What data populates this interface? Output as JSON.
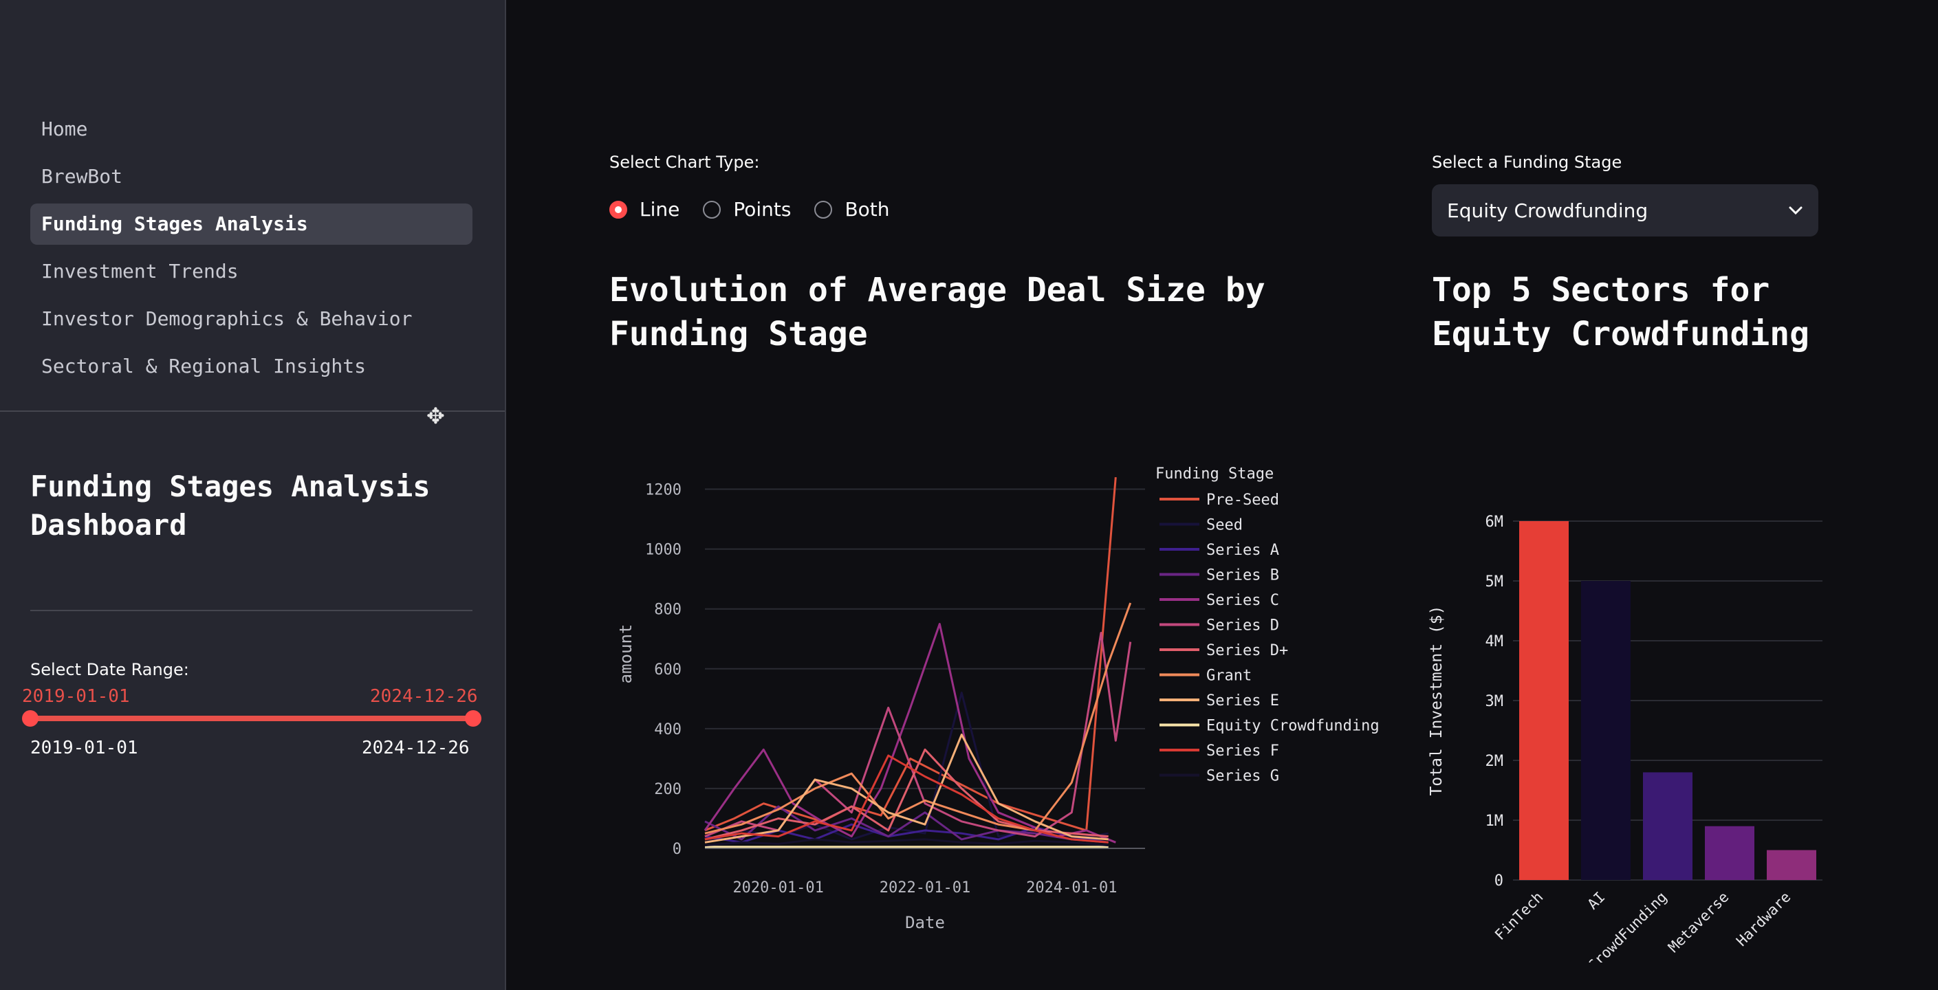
{
  "sidebar": {
    "nav": [
      {
        "label": "Home"
      },
      {
        "label": "BrewBot"
      },
      {
        "label": "Funding Stages Analysis"
      },
      {
        "label": "Investment Trends"
      },
      {
        "label": "Investor Demographics & Behavior"
      },
      {
        "label": "Sectoral & Regional Insights"
      }
    ],
    "title": "Funding Stages Analysis Dashboard",
    "date_range": {
      "label": "Select Date Range:",
      "start": "2019-01-01",
      "end": "2024-12-26"
    }
  },
  "controls": {
    "chart_type_label": "Select Chart Type:",
    "chart_types": [
      "Line",
      "Points",
      "Both"
    ],
    "selected_chart_type": "Line",
    "stage_label": "Select a Funding Stage",
    "stage_value": "Equity Crowdfunding"
  },
  "headings": {
    "left": "Evolution of Average Deal Size by Funding Stage",
    "right": "Top 5 Sectors for Equity Crowdfunding"
  },
  "colors": {
    "accent": "#ff4b4b",
    "bg": "#0e0e12",
    "sidebar": "#262730"
  },
  "icons": {
    "cursor": "move-cursor-icon",
    "dropdown": "chevron-down-icon"
  },
  "chart_data": [
    {
      "type": "line",
      "title": "Evolution of Average Deal Size by Funding Stage",
      "xlabel": "Date",
      "ylabel": "amount",
      "xlim": [
        2019.0,
        2025.0
      ],
      "ylim": [
        0,
        1300
      ],
      "x_ticks": [
        "2020-01-01",
        "2022-01-01",
        "2024-01-01"
      ],
      "y_ticks": [
        0,
        200,
        400,
        600,
        800,
        1000,
        1200
      ],
      "legend_title": "Funding Stage",
      "series": [
        {
          "name": "Pre-Seed",
          "color": "#e0533d",
          "x": [
            2019.0,
            2019.4,
            2019.8,
            2020.2,
            2020.6,
            2021.0,
            2021.4,
            2021.8,
            2022.2,
            2022.6,
            2023.0,
            2023.4,
            2023.8,
            2024.2,
            2024.6
          ],
          "y": [
            60,
            100,
            150,
            120,
            90,
            140,
            110,
            300,
            250,
            200,
            150,
            120,
            90,
            60,
            1240
          ]
        },
        {
          "name": "Seed",
          "color": "#17123a",
          "x": [
            2019.0,
            2019.5,
            2020.0,
            2020.5,
            2021.0,
            2021.5,
            2022.0,
            2022.5,
            2023.0,
            2023.5,
            2024.0,
            2024.5
          ],
          "y": [
            20,
            60,
            40,
            80,
            30,
            70,
            50,
            520,
            40,
            60,
            30,
            50
          ]
        },
        {
          "name": "Series A",
          "color": "#3e1f8e",
          "x": [
            2019.0,
            2019.5,
            2020.0,
            2020.5,
            2021.0,
            2021.5,
            2022.0,
            2022.5,
            2023.0,
            2023.5,
            2024.0,
            2024.5
          ],
          "y": [
            40,
            20,
            60,
            30,
            80,
            40,
            60,
            50,
            30,
            70,
            40,
            20
          ]
        },
        {
          "name": "Series B",
          "color": "#6a2585",
          "x": [
            2019.0,
            2019.5,
            2020.0,
            2020.5,
            2021.0,
            2021.5,
            2022.0,
            2022.5,
            2023.0,
            2023.5,
            2024.0,
            2024.5
          ],
          "y": [
            90,
            30,
            140,
            60,
            100,
            40,
            120,
            30,
            60,
            50,
            30,
            20
          ]
        },
        {
          "name": "Series C",
          "color": "#9a2f86",
          "x": [
            2019.0,
            2019.4,
            2019.8,
            2020.2,
            2020.6,
            2021.0,
            2021.4,
            2021.8,
            2022.2,
            2022.6,
            2023.0,
            2023.4,
            2023.8,
            2024.2,
            2024.6
          ],
          "y": [
            60,
            200,
            330,
            150,
            90,
            40,
            200,
            470,
            750,
            300,
            120,
            80,
            40,
            60,
            20
          ]
        },
        {
          "name": "Series D",
          "color": "#c2487d",
          "x": [
            2019.0,
            2019.5,
            2020.0,
            2020.5,
            2021.0,
            2021.5,
            2022.0,
            2022.5,
            2023.0,
            2023.5,
            2024.0,
            2024.4,
            2024.6,
            2024.8
          ],
          "y": [
            40,
            90,
            60,
            230,
            120,
            470,
            150,
            90,
            60,
            40,
            120,
            720,
            360,
            690
          ]
        },
        {
          "name": "Series D+",
          "color": "#e05e6b",
          "x": [
            2019.0,
            2019.5,
            2020.0,
            2020.5,
            2021.0,
            2021.5,
            2022.0,
            2022.5,
            2023.0,
            2023.5,
            2024.0,
            2024.5
          ],
          "y": [
            30,
            60,
            100,
            80,
            140,
            60,
            330,
            200,
            90,
            60,
            50,
            40
          ]
        },
        {
          "name": "Grant",
          "color": "#f08a5a",
          "x": [
            2019.0,
            2019.5,
            2020.0,
            2020.5,
            2021.0,
            2021.5,
            2022.0,
            2022.5,
            2023.0,
            2023.5,
            2024.0,
            2024.5,
            2024.8
          ],
          "y": [
            50,
            80,
            130,
            200,
            250,
            100,
            160,
            120,
            80,
            60,
            220,
            620,
            820
          ]
        },
        {
          "name": "Series E",
          "color": "#f5b078",
          "x": [
            2019.0,
            2019.5,
            2020.0,
            2020.5,
            2021.0,
            2021.5,
            2022.0,
            2022.5,
            2023.0,
            2023.5,
            2024.0,
            2024.5
          ],
          "y": [
            20,
            40,
            60,
            230,
            200,
            120,
            80,
            380,
            150,
            90,
            40,
            30
          ]
        },
        {
          "name": "Equity Crowdfunding",
          "color": "#f6e2a8",
          "x": [
            2019.0,
            2019.5,
            2020.0,
            2020.5,
            2021.0,
            2021.5,
            2022.0,
            2022.5,
            2023.0,
            2023.5,
            2024.0,
            2024.5
          ],
          "y": [
            5,
            5,
            5,
            5,
            5,
            5,
            5,
            5,
            5,
            5,
            5,
            5
          ]
        },
        {
          "name": "Series F",
          "color": "#d83a33",
          "x": [
            2019.0,
            2019.5,
            2020.0,
            2020.5,
            2021.0,
            2021.5,
            2022.0,
            2022.5,
            2023.0,
            2023.5,
            2024.0,
            2024.5
          ],
          "y": [
            30,
            50,
            40,
            90,
            60,
            310,
            240,
            180,
            100,
            60,
            30,
            20
          ]
        },
        {
          "name": "Series G",
          "color": "#15112b",
          "x": [
            2019.0,
            2019.5,
            2020.0,
            2020.5,
            2021.0,
            2021.5,
            2022.0,
            2022.5,
            2023.0,
            2023.5,
            2024.0,
            2024.5
          ],
          "y": [
            10,
            20,
            15,
            30,
            20,
            25,
            30,
            20,
            15,
            25,
            20,
            10
          ]
        }
      ]
    },
    {
      "type": "bar",
      "title": "Top 5 Sectors for Equity Crowdfunding",
      "xlabel": "",
      "ylabel": "Total Investment ($)",
      "categories": [
        "FinTech",
        "AI",
        "CrowdFunding",
        "Metaverse",
        "Hardware"
      ],
      "values": [
        6000000,
        5000000,
        1800000,
        900000,
        500000
      ],
      "colors": [
        "#e63e36",
        "#120c2c",
        "#3b1a73",
        "#631f7d",
        "#8e2d7a"
      ],
      "ylim": [
        0,
        6000000
      ],
      "y_ticks": [
        0,
        1000000,
        2000000,
        3000000,
        4000000,
        5000000,
        6000000
      ],
      "y_tick_labels": [
        "0",
        "1M",
        "2M",
        "3M",
        "4M",
        "5M",
        "6M"
      ]
    }
  ]
}
